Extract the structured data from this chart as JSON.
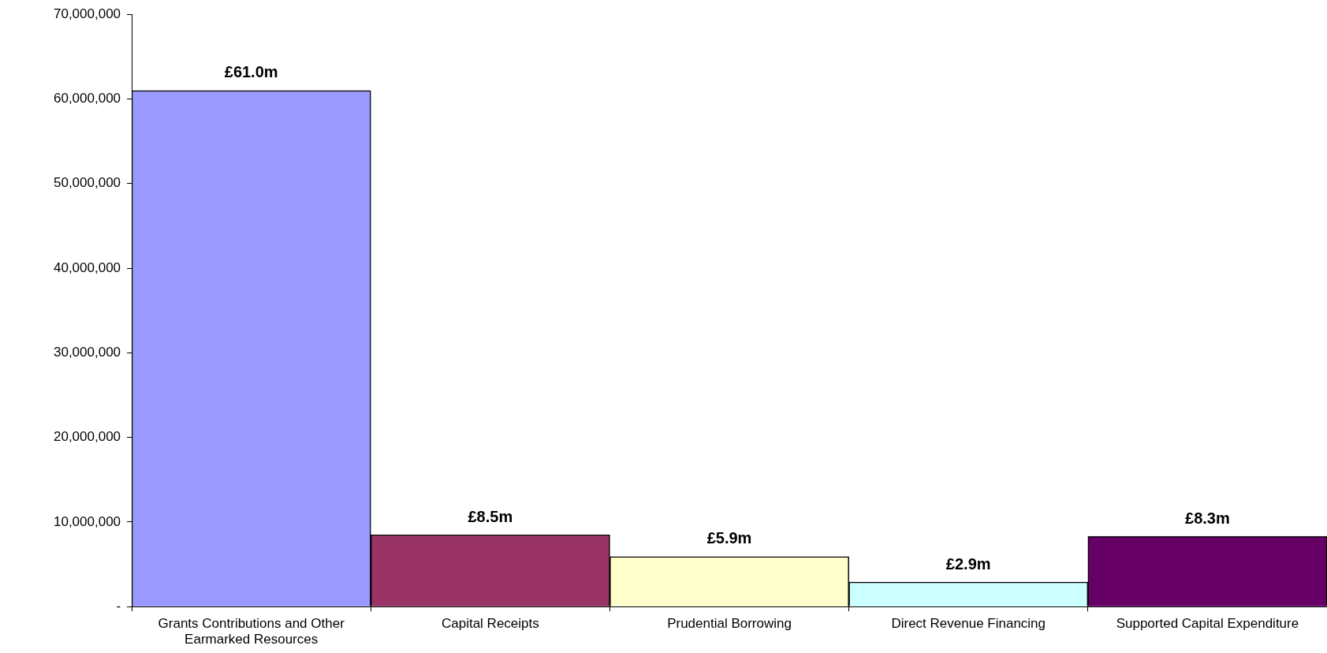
{
  "chart_data": {
    "type": "bar",
    "categories": [
      "Grants Contributions and Other Earmarked Resources",
      "Capital Receipts",
      "Prudential Borrowing",
      "Direct Revenue Financing",
      "Supported Capital Expenditure"
    ],
    "values": [
      61000000,
      8500000,
      5900000,
      2900000,
      8300000
    ],
    "colors": [
      "#9999ff",
      "#993366",
      "#ffffcc",
      "#ccffff",
      "#660066"
    ],
    "value_labels": [
      "£61.0m",
      "£8.5m",
      "£5.9m",
      "£2.9m",
      "£8.3m"
    ],
    "ylim": [
      0,
      70000000
    ],
    "yticks": [
      {
        "value": 0,
        "label": "-"
      },
      {
        "value": 10000000,
        "label": "10,000,000"
      },
      {
        "value": 20000000,
        "label": "20,000,000"
      },
      {
        "value": 30000000,
        "label": "30,000,000"
      },
      {
        "value": 40000000,
        "label": "40,000,000"
      },
      {
        "value": 50000000,
        "label": "50,000,000"
      },
      {
        "value": 60000000,
        "label": "60,000,000"
      },
      {
        "value": 70000000,
        "label": "70,000,000"
      }
    ],
    "grid": false,
    "legend": false
  }
}
